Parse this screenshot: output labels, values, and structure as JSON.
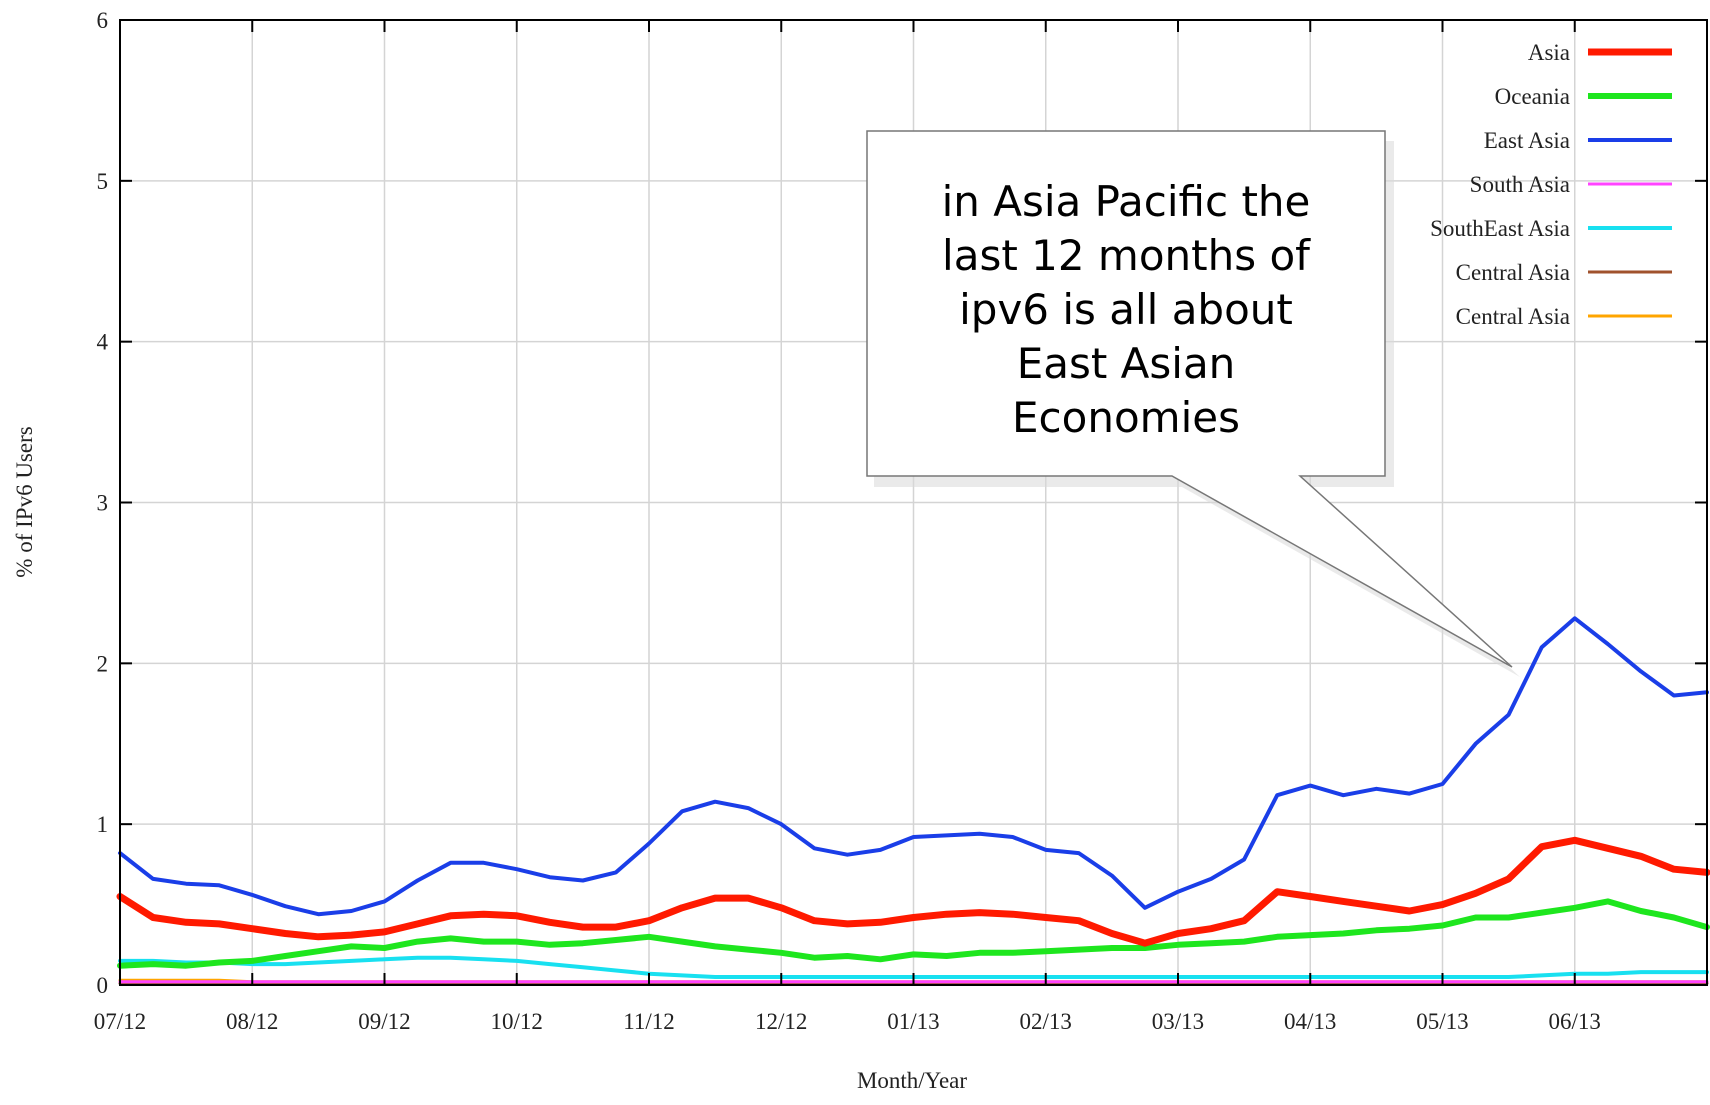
{
  "chart_data": {
    "type": "line",
    "xlabel": "Month/Year",
    "ylabel": "% of IPv6 Users",
    "annotation": [
      "in Asia Pacific the",
      "last 12 months of",
      "ipv6 is all about",
      "East Asian",
      "Economies"
    ],
    "xlim": [
      0,
      12
    ],
    "xticks": [
      {
        "value": 0,
        "label": "07/12"
      },
      {
        "value": 1,
        "label": "08/12"
      },
      {
        "value": 2,
        "label": "09/12"
      },
      {
        "value": 3,
        "label": "10/12"
      },
      {
        "value": 4,
        "label": "11/12"
      },
      {
        "value": 5,
        "label": "12/12"
      },
      {
        "value": 6,
        "label": "01/13"
      },
      {
        "value": 7,
        "label": "02/13"
      },
      {
        "value": 8,
        "label": "03/13"
      },
      {
        "value": 9,
        "label": "04/13"
      },
      {
        "value": 10,
        "label": "05/13"
      },
      {
        "value": 11,
        "label": "06/13"
      }
    ],
    "ylim": [
      0,
      6
    ],
    "yticks": [
      0,
      1,
      2,
      3,
      4,
      5,
      6
    ],
    "grid": true,
    "legend": "top-right",
    "x": [
      0,
      0.25,
      0.5,
      0.75,
      1,
      1.25,
      1.5,
      1.75,
      2,
      2.25,
      2.5,
      2.75,
      3,
      3.25,
      3.5,
      3.75,
      4,
      4.25,
      4.5,
      4.75,
      5,
      5.25,
      5.5,
      5.75,
      6,
      6.25,
      6.5,
      6.75,
      7,
      7.25,
      7.5,
      7.75,
      8,
      8.25,
      8.5,
      8.75,
      9,
      9.25,
      9.5,
      9.75,
      10,
      10.25,
      10.5,
      10.75,
      11,
      11.25,
      11.5,
      11.75,
      12
    ],
    "series": [
      {
        "name": "Asia",
        "color": "#ff1a00",
        "values": [
          0.55,
          0.42,
          0.39,
          0.38,
          0.35,
          0.32,
          0.3,
          0.31,
          0.33,
          0.38,
          0.43,
          0.44,
          0.43,
          0.39,
          0.36,
          0.36,
          0.4,
          0.48,
          0.54,
          0.54,
          0.48,
          0.4,
          0.38,
          0.39,
          0.42,
          0.44,
          0.45,
          0.44,
          0.42,
          0.4,
          0.32,
          0.26,
          0.32,
          0.35,
          0.4,
          0.58,
          0.55,
          0.52,
          0.49,
          0.46,
          0.5,
          0.57,
          0.66,
          0.86,
          0.9,
          0.85,
          0.8,
          0.72,
          0.7
        ]
      },
      {
        "name": "Oceania",
        "color": "#1ee61e",
        "values": [
          0.12,
          0.13,
          0.12,
          0.14,
          0.15,
          0.18,
          0.21,
          0.24,
          0.23,
          0.27,
          0.29,
          0.27,
          0.27,
          0.25,
          0.26,
          0.28,
          0.3,
          0.27,
          0.24,
          0.22,
          0.2,
          0.17,
          0.18,
          0.16,
          0.19,
          0.18,
          0.2,
          0.2,
          0.21,
          0.22,
          0.23,
          0.23,
          0.25,
          0.26,
          0.27,
          0.3,
          0.31,
          0.32,
          0.34,
          0.35,
          0.37,
          0.42,
          0.42,
          0.45,
          0.48,
          0.52,
          0.46,
          0.42,
          0.36
        ]
      },
      {
        "name": "East Asia",
        "color": "#1a3ee8",
        "values": [
          0.82,
          0.66,
          0.63,
          0.62,
          0.56,
          0.49,
          0.44,
          0.46,
          0.52,
          0.65,
          0.76,
          0.76,
          0.72,
          0.67,
          0.65,
          0.7,
          0.88,
          1.08,
          1.14,
          1.1,
          1.0,
          0.85,
          0.81,
          0.84,
          0.92,
          0.93,
          0.94,
          0.92,
          0.84,
          0.82,
          0.68,
          0.48,
          0.58,
          0.66,
          0.78,
          1.18,
          1.24,
          1.18,
          1.22,
          1.19,
          1.25,
          1.5,
          1.68,
          2.1,
          2.28,
          2.12,
          1.95,
          1.8,
          1.82
        ]
      },
      {
        "name": "South Asia",
        "color": "#ff44ff",
        "values": [
          0.02,
          0.02,
          0.02,
          0.02,
          0.02,
          0.02,
          0.02,
          0.02,
          0.02,
          0.02,
          0.02,
          0.02,
          0.02,
          0.02,
          0.02,
          0.02,
          0.02,
          0.02,
          0.02,
          0.02,
          0.02,
          0.02,
          0.02,
          0.02,
          0.02,
          0.02,
          0.02,
          0.02,
          0.02,
          0.02,
          0.02,
          0.02,
          0.02,
          0.02,
          0.02,
          0.02,
          0.02,
          0.02,
          0.02,
          0.02,
          0.02,
          0.02,
          0.02,
          0.02,
          0.02,
          0.02,
          0.02,
          0.02,
          0.02
        ]
      },
      {
        "name": "SouthEast Asia",
        "color": "#18e0f0",
        "values": [
          0.15,
          0.15,
          0.14,
          0.14,
          0.13,
          0.13,
          0.14,
          0.15,
          0.16,
          0.17,
          0.17,
          0.16,
          0.15,
          0.13,
          0.11,
          0.09,
          0.07,
          0.06,
          0.05,
          0.05,
          0.05,
          0.05,
          0.05,
          0.05,
          0.05,
          0.05,
          0.05,
          0.05,
          0.05,
          0.05,
          0.05,
          0.05,
          0.05,
          0.05,
          0.05,
          0.05,
          0.05,
          0.05,
          0.05,
          0.05,
          0.05,
          0.05,
          0.05,
          0.06,
          0.07,
          0.07,
          0.08,
          0.08,
          0.08
        ]
      },
      {
        "name": "Central Asia",
        "color": "#a0522d",
        "values": [
          0.01,
          0.01,
          0.01,
          0.01,
          0.01,
          0.01,
          0.01,
          0.01,
          0.01,
          0.01,
          0.01,
          0.01,
          0.01,
          0.01,
          0.01,
          0.01,
          0.01,
          0.01,
          0.01,
          0.01,
          0.01,
          0.01,
          0.01,
          0.01,
          0.01,
          0.01,
          0.01,
          0.01,
          0.01,
          0.01,
          0.01,
          0.01,
          0.01,
          0.01,
          0.01,
          0.01,
          0.01,
          0.01,
          0.01,
          0.01,
          0.01,
          0.01,
          0.01,
          0.01,
          0.01,
          0.01,
          0.01,
          0.01,
          0.01
        ]
      },
      {
        "name": "Central Asia",
        "color": "#ffa500",
        "values": [
          0.03,
          0.03,
          0.03,
          0.03,
          0.02,
          0.02,
          0.02,
          0.02,
          0.02,
          0.02,
          0.02,
          0.02,
          0.02,
          0.02,
          0.02,
          0.02,
          0.02,
          0.02,
          0.02,
          0.02,
          0.02,
          0.02,
          0.02,
          0.02,
          0.02,
          0.02,
          0.02,
          0.02,
          0.02,
          0.02,
          0.02,
          0.02,
          0.02,
          0.02,
          0.02,
          0.02,
          0.02,
          0.02,
          0.02,
          0.02,
          0.02,
          0.02,
          0.02,
          0.02,
          0.02,
          0.02,
          0.02,
          0.02,
          0.02
        ]
      }
    ]
  }
}
